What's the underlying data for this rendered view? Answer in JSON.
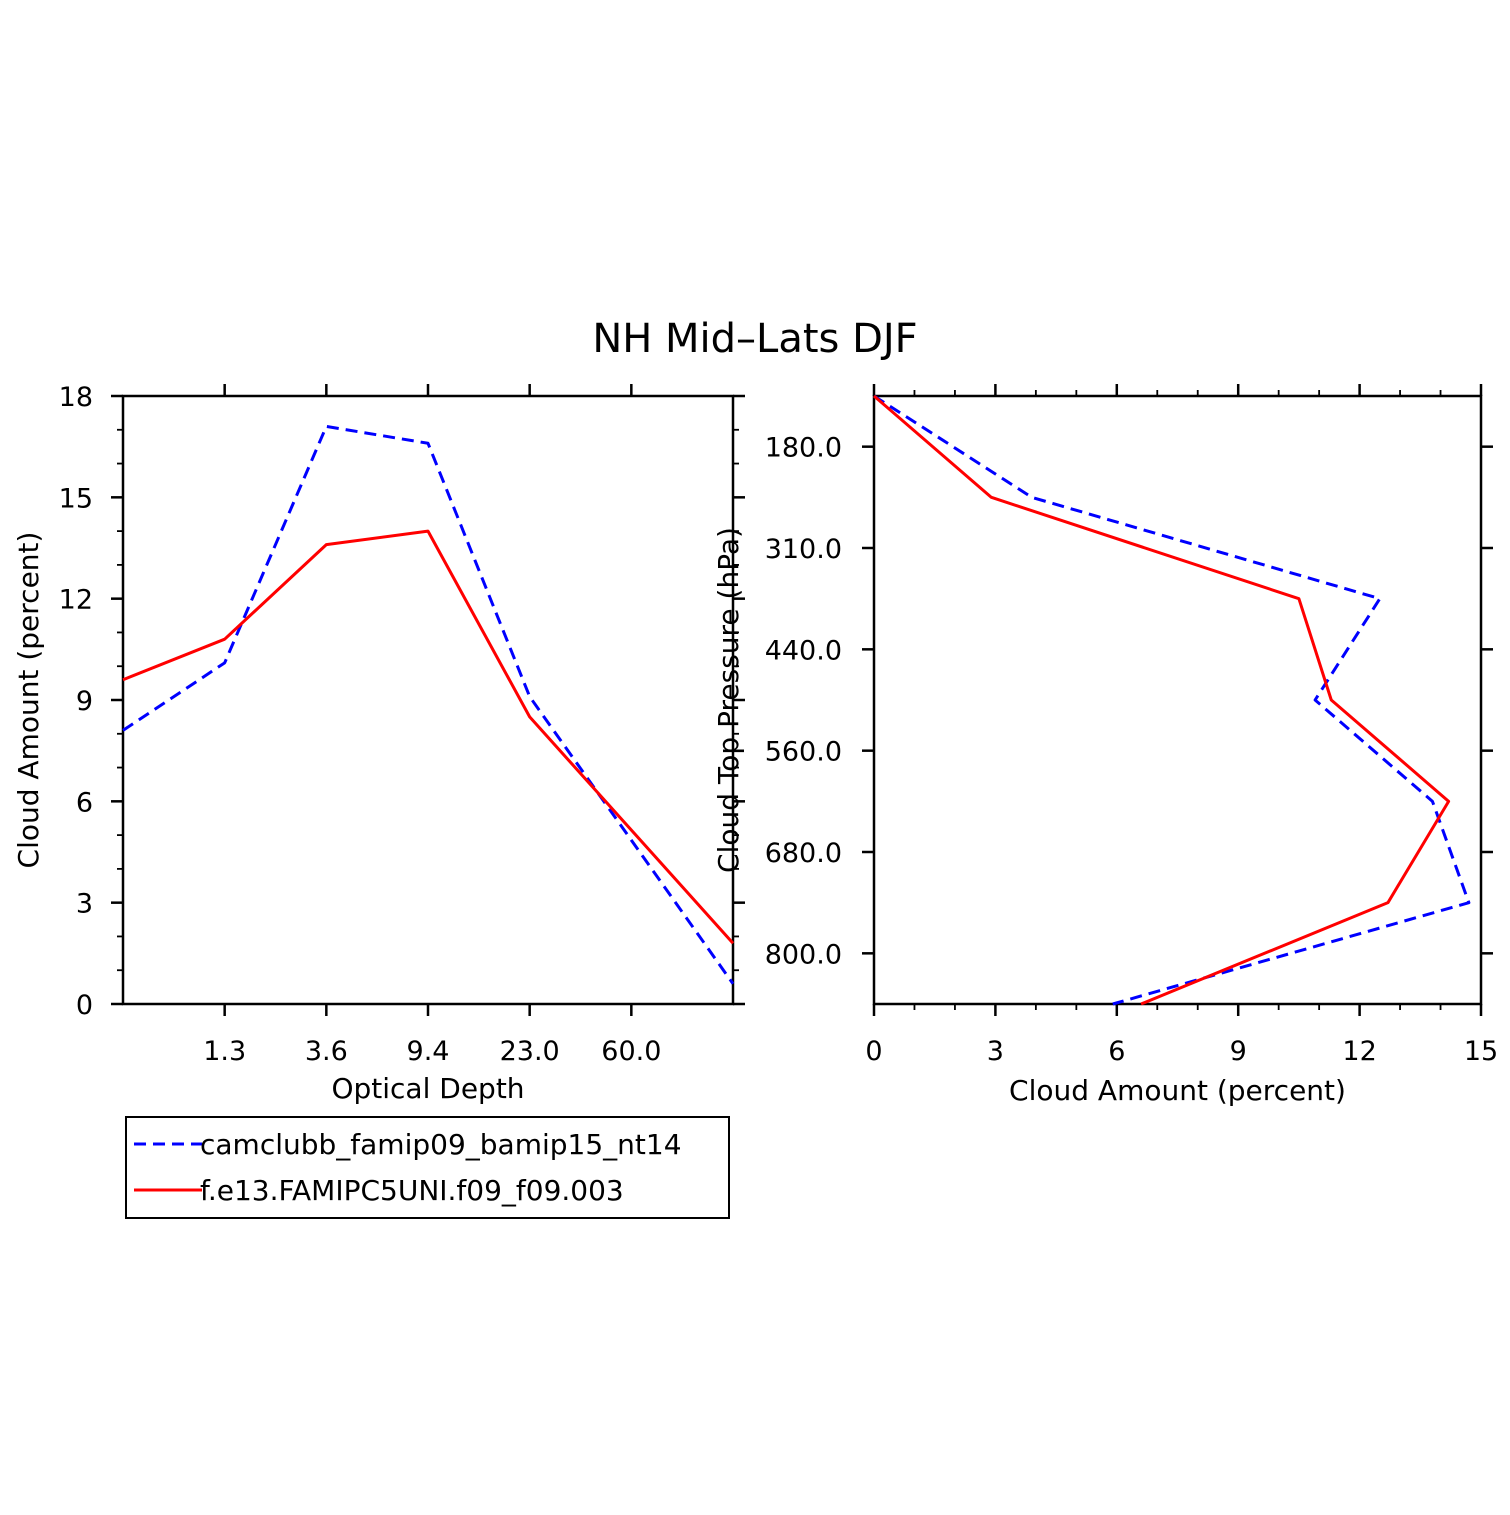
{
  "figure_title": "NH Mid–Lats DJF",
  "chart_data": [
    {
      "type": "line",
      "xlabel": "Optical Depth",
      "ylabel": "Cloud Amount (percent)",
      "x_tick_labels": [
        "1.3",
        "3.6",
        "9.4",
        "23.0",
        "60.0"
      ],
      "y_ticks": [
        0,
        3,
        6,
        9,
        12,
        15,
        18
      ],
      "ylim": [
        0,
        18
      ],
      "grid": false,
      "series": [
        {
          "name": "camclubb_famip09_bamip15_nt14",
          "color": "#0000ff",
          "dash": "dashed",
          "values": [
            8.1,
            10.1,
            17.1,
            16.6,
            9.1,
            0.6
          ]
        },
        {
          "name": "f.e13.FAMIPC5UNI.f09_f09.003",
          "color": "#ff0000",
          "dash": "solid",
          "values": [
            9.6,
            10.8,
            13.6,
            14.0,
            8.5,
            1.8
          ]
        }
      ]
    },
    {
      "type": "line",
      "xlabel": "Cloud Amount (percent)",
      "ylabel": "Cloud Top Pressure (hPa)",
      "x_ticks": [
        0,
        3,
        6,
        9,
        12,
        15
      ],
      "xlim": [
        0,
        15
      ],
      "y_tick_labels": [
        "180.0",
        "310.0",
        "440.0",
        "560.0",
        "680.0",
        "800.0"
      ],
      "grid": false,
      "series": [
        {
          "name": "camclubb_famip09_bamip15_nt14",
          "color": "#0000ff",
          "dash": "dashed",
          "values": [
            0.0,
            3.9,
            12.5,
            10.9,
            13.8,
            14.7,
            5.9
          ]
        },
        {
          "name": "f.e13.FAMIPC5UNI.f09_f09.003",
          "color": "#ff0000",
          "dash": "solid",
          "values": [
            0.0,
            2.9,
            10.5,
            11.3,
            14.2,
            12.7,
            6.6
          ]
        }
      ]
    }
  ],
  "legend": {
    "items": [
      {
        "label": "camclubb_famip09_bamip15_nt14",
        "color": "#0000ff",
        "dash": "dashed"
      },
      {
        "label": "f.e13.FAMIPC5UNI.f09_f09.003",
        "color": "#ff0000",
        "dash": "solid"
      }
    ]
  }
}
